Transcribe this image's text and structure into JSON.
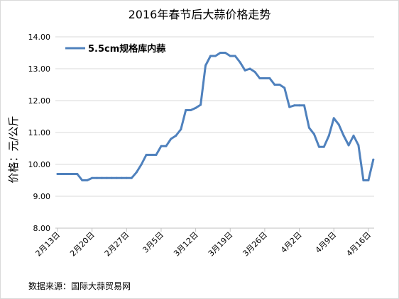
{
  "chart_data": {
    "type": "line",
    "title": "2016年春节后大蒜价格走势",
    "ylabel": "价格：元/公斤",
    "xlabel": "",
    "ylim": [
      8.0,
      14.0
    ],
    "yticks": [
      "8.00",
      "9.00",
      "10.00",
      "11.00",
      "12.00",
      "13.00",
      "14.00"
    ],
    "xticks": [
      "2月13日",
      "2月20日",
      "2月27日",
      "3月5日",
      "3月12日",
      "3月19日",
      "3月26日",
      "4月2日",
      "4月9日",
      "4月16日"
    ],
    "grid": "horizontal",
    "legend_position": "top-left",
    "source": "数据来源：国际大蒜贸易网",
    "series": [
      {
        "name": "5.5cm规格库内蒜",
        "color": "#4f81bd",
        "values": [
          9.7,
          9.7,
          9.7,
          9.7,
          9.7,
          9.5,
          9.5,
          9.57,
          9.57,
          9.57,
          9.57,
          9.57,
          9.57,
          9.57,
          9.57,
          9.57,
          9.75,
          10.0,
          10.3,
          10.3,
          10.3,
          10.57,
          10.57,
          10.8,
          10.9,
          11.1,
          11.7,
          11.7,
          11.77,
          11.87,
          13.1,
          13.4,
          13.4,
          13.5,
          13.5,
          13.4,
          13.4,
          13.2,
          12.95,
          13.0,
          12.9,
          12.7,
          12.7,
          12.7,
          12.5,
          12.5,
          12.4,
          11.8,
          11.85,
          11.85,
          11.85,
          11.15,
          10.95,
          10.55,
          10.55,
          10.9,
          11.45,
          11.25,
          10.9,
          10.6,
          10.9,
          10.6,
          9.5,
          9.5,
          10.15
        ]
      }
    ]
  }
}
